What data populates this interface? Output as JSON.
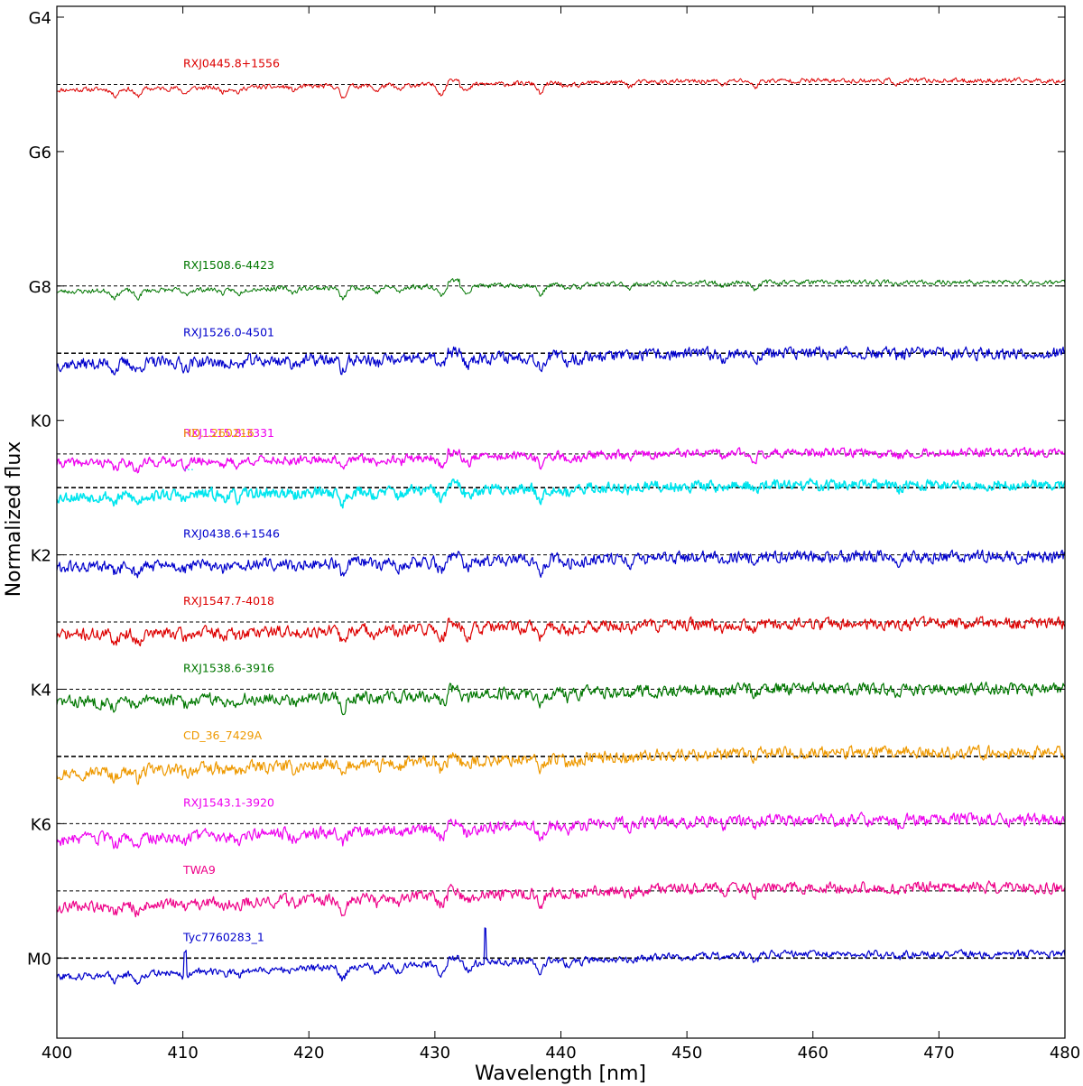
{
  "chart_data": {
    "type": "line",
    "title": "",
    "xlabel": "Wavelength [nm]",
    "ylabel": "Normalized flux",
    "xlim": [
      400,
      480
    ],
    "x_ticks": [
      400,
      410,
      420,
      430,
      440,
      450,
      460,
      470,
      480
    ],
    "y_ticks": [
      "G4",
      "G6",
      "G8",
      "K0",
      "K2",
      "K4",
      "K6",
      "M0"
    ],
    "grid": false,
    "legend": "none",
    "reference_line_style": "dashed black",
    "series": [
      {
        "name": "RXJ0445.8+1556",
        "color": "#dd0000",
        "ref_level": "G5",
        "offset": -0.15,
        "noise": 0.12,
        "slope": 0.25,
        "seed": 11,
        "width": 1.0
      },
      {
        "name": "RXJ1508.6-4423",
        "color": "#007700",
        "ref_level": "G8",
        "offset": -0.15,
        "noise": 0.12,
        "slope": 0.25,
        "seed": 23,
        "width": 1.0
      },
      {
        "name": "RXJ1526.0-4501",
        "color": "#0000cc",
        "ref_level": "G9",
        "offset": -0.3,
        "noise": 0.3,
        "slope": 0.3,
        "seed": 37,
        "width": 1.2
      },
      {
        "name": "RXJ1515.8-3331",
        "color": "#ee00ee",
        "ref_level": "K0.5",
        "offset": -0.25,
        "noise": 0.22,
        "slope": 0.28,
        "seed": 41,
        "width": 1.3
      },
      {
        "name": "HD...260216",
        "color": "#ee9900",
        "ref_level": "K0.5",
        "offset": 0.0,
        "noise": 0.0,
        "slope": 0.0,
        "seed": 0,
        "width": 0.0
      },
      {
        "name": "...",
        "color": "#00e5ee",
        "ref_level": "K1",
        "offset": -0.25,
        "noise": 0.28,
        "slope": 0.32,
        "seed": 53,
        "width": 1.6
      },
      {
        "name": "RXJ0438.6+1546",
        "color": "#0000cc",
        "ref_level": "K2",
        "offset": -0.35,
        "noise": 0.3,
        "slope": 0.3,
        "seed": 61,
        "width": 1.2
      },
      {
        "name": "RXJ1547.7-4018",
        "color": "#dd0000",
        "ref_level": "K3",
        "offset": -0.35,
        "noise": 0.3,
        "slope": 0.3,
        "seed": 71,
        "width": 1.2
      },
      {
        "name": "RXJ1538.6-3916",
        "color": "#007700",
        "ref_level": "K4",
        "offset": -0.35,
        "noise": 0.3,
        "slope": 0.35,
        "seed": 83,
        "width": 1.2
      },
      {
        "name": "CD_36_7429A",
        "color": "#ee9900",
        "ref_level": "K5",
        "offset": -0.45,
        "noise": 0.3,
        "slope": 0.55,
        "seed": 97,
        "width": 1.2
      },
      {
        "name": "RXJ1543.1-3920",
        "color": "#ee00ee",
        "ref_level": "K6",
        "offset": -0.45,
        "noise": 0.3,
        "slope": 0.55,
        "seed": 103,
        "width": 1.2
      },
      {
        "name": "TWA9",
        "color": "#ee0088",
        "ref_level": "K7",
        "offset": -0.45,
        "noise": 0.28,
        "slope": 0.55,
        "seed": 109,
        "width": 1.2
      },
      {
        "name": "Tyc7760283_1",
        "color": "#0000cc",
        "ref_level": "M0",
        "offset": -0.5,
        "noise": 0.18,
        "slope": 0.6,
        "seed": 127,
        "width": 1.2
      }
    ],
    "labels": {
      "s0": "RXJ0445.8+1556",
      "s1": "RXJ1508.6-4423",
      "s2": "RXJ1526.0-4501",
      "s3a": "RXJ1515.8-3331",
      "s3b": "HD...260216",
      "s4": "...",
      "s5": "RXJ0438.6+1546",
      "s6": "RXJ1547.7-4018",
      "s7": "RXJ1538.6-3916",
      "s8": "CD_36_7429A",
      "s9": "RXJ1543.1-3920",
      "s10": "TWA9",
      "s11": "Tyc7760283_1"
    }
  }
}
